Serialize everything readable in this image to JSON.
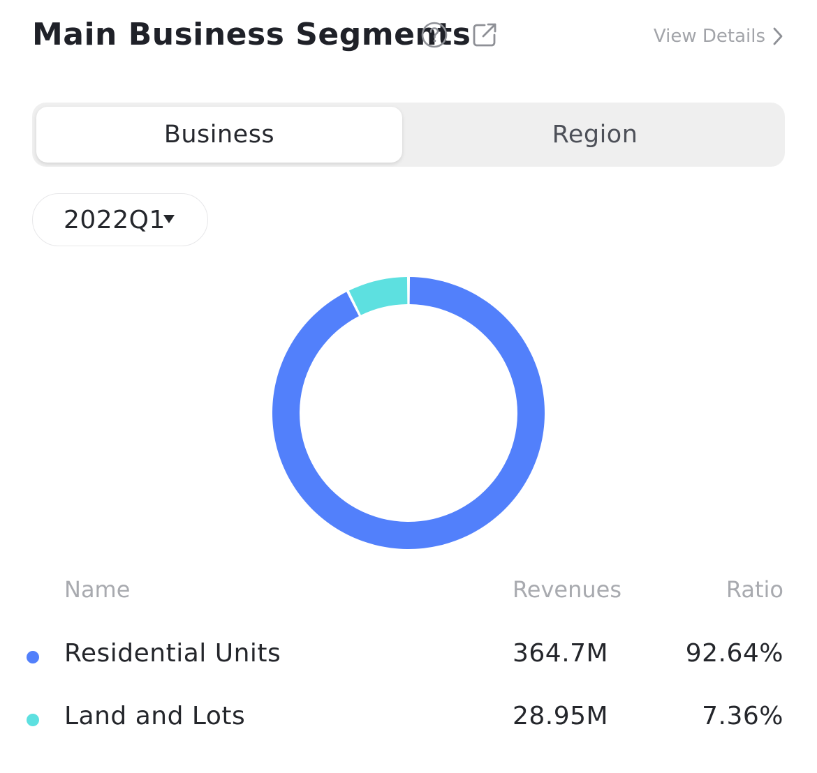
{
  "header": {
    "title": "Main Business Segments",
    "view_details_label": "View Details"
  },
  "tabs": [
    {
      "label": "Business",
      "active": true
    },
    {
      "label": "Region",
      "active": false
    }
  ],
  "period_select": {
    "value": "2022Q1"
  },
  "colors": {
    "residential": "#5280FB",
    "land": "#5DE0E0"
  },
  "chart_data": {
    "type": "pie",
    "variant": "donut",
    "categories": [
      "Residential Units",
      "Land and Lots"
    ],
    "values": [
      92.64,
      7.36
    ],
    "unit": "%",
    "colors": [
      "#5280FB",
      "#5DE0E0"
    ]
  },
  "table": {
    "headers": {
      "name": "Name",
      "revenues": "Revenues",
      "ratio": "Ratio"
    },
    "rows": [
      {
        "name": "Residential Units",
        "revenues": "364.7M",
        "ratio": "92.64%",
        "color": "#5280FB"
      },
      {
        "name": "Land and Lots",
        "revenues": "28.95M",
        "ratio": "7.36%",
        "color": "#5DE0E0"
      }
    ]
  }
}
